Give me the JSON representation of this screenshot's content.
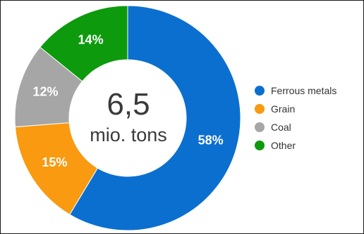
{
  "chart_data": {
    "type": "pie",
    "donut": true,
    "center_value": "6,5",
    "center_unit": "mio. tons",
    "slices": [
      {
        "label": "Ferrous metals",
        "value": 58,
        "display": "58%",
        "color": "#0b6fd0"
      },
      {
        "label": "Grain",
        "value": 15,
        "display": "15%",
        "color": "#f99a10"
      },
      {
        "label": "Coal",
        "value": 12,
        "display": "12%",
        "color": "#a6a6a6"
      },
      {
        "label": "Other",
        "value": 14,
        "display": "14%",
        "color": "#0d9a0d"
      }
    ],
    "legend_position": "right"
  }
}
